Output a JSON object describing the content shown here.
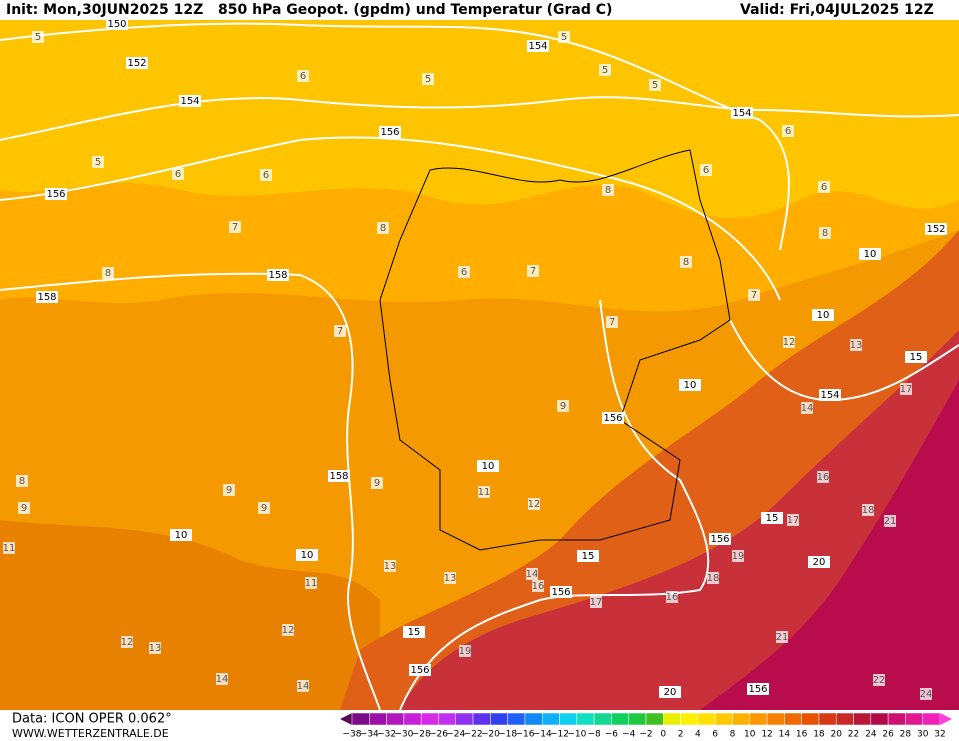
{
  "header": {
    "init": "Init: Mon,30JUN2025 12Z",
    "title": "850 hPa Geopot. (gpdm) und Temperatur (Grad C)",
    "valid": "Valid: Fri,04JUL2025 12Z"
  },
  "footer": {
    "model": "Data: ICON OPER 0.062°",
    "site": "WWW.WETTERZENTRALE.DE"
  },
  "legend": {
    "labels": [
      "−38",
      "−34",
      "−32",
      "−30",
      "−28",
      "−26",
      "−24",
      "−22",
      "−20",
      "−18",
      "−16",
      "−14",
      "−12",
      "−10",
      "−8",
      "−6",
      "−4",
      "−2",
      "0",
      "2",
      "4",
      "6",
      "8",
      "10",
      "12",
      "14",
      "16",
      "18",
      "20",
      "22",
      "24",
      "26",
      "28",
      "30",
      "32"
    ],
    "colors": [
      "#5a0a5a",
      "#7a0a8a",
      "#9a10a8",
      "#b018c0",
      "#c820d8",
      "#d828e8",
      "#c030f0",
      "#9030f0",
      "#6030f0",
      "#3040f0",
      "#2060f8",
      "#1088f8",
      "#10b0f8",
      "#10d0f0",
      "#10e0c0",
      "#10d890",
      "#10d060",
      "#20c840",
      "#40c020",
      "#e8f000",
      "#fff000",
      "#ffe000",
      "#ffc800",
      "#ffb000",
      "#ff9800",
      "#f88000",
      "#f06800",
      "#e85000",
      "#d83818",
      "#c82828",
      "#b81838",
      "#b00848",
      "#d01070",
      "#e01890",
      "#f020b8",
      "#ff40e0"
    ]
  },
  "geopotential_labels": [
    "150",
    "152",
    "154",
    "156",
    "156",
    "158",
    "158",
    "154",
    "154",
    "152",
    "154",
    "156",
    "158",
    "156",
    "156",
    "156",
    "156",
    "15",
    "15",
    "15",
    "15",
    "20",
    "20",
    "10",
    "10",
    "10",
    "10",
    "10",
    "10"
  ],
  "temperature_labels": [
    "5",
    "5",
    "5",
    "5",
    "5",
    "5",
    "6",
    "6",
    "6",
    "6",
    "6",
    "6",
    "6",
    "7",
    "7",
    "7",
    "7",
    "7",
    "8",
    "8",
    "8",
    "8",
    "8",
    "8",
    "9",
    "9",
    "9",
    "9",
    "9",
    "11",
    "11",
    "11",
    "12",
    "12",
    "12",
    "12",
    "13",
    "13",
    "13",
    "13",
    "14",
    "14",
    "14",
    "14",
    "16",
    "16",
    "16",
    "17",
    "17",
    "17",
    "18",
    "18",
    "19",
    "19",
    "21",
    "21",
    "22",
    "24"
  ]
}
